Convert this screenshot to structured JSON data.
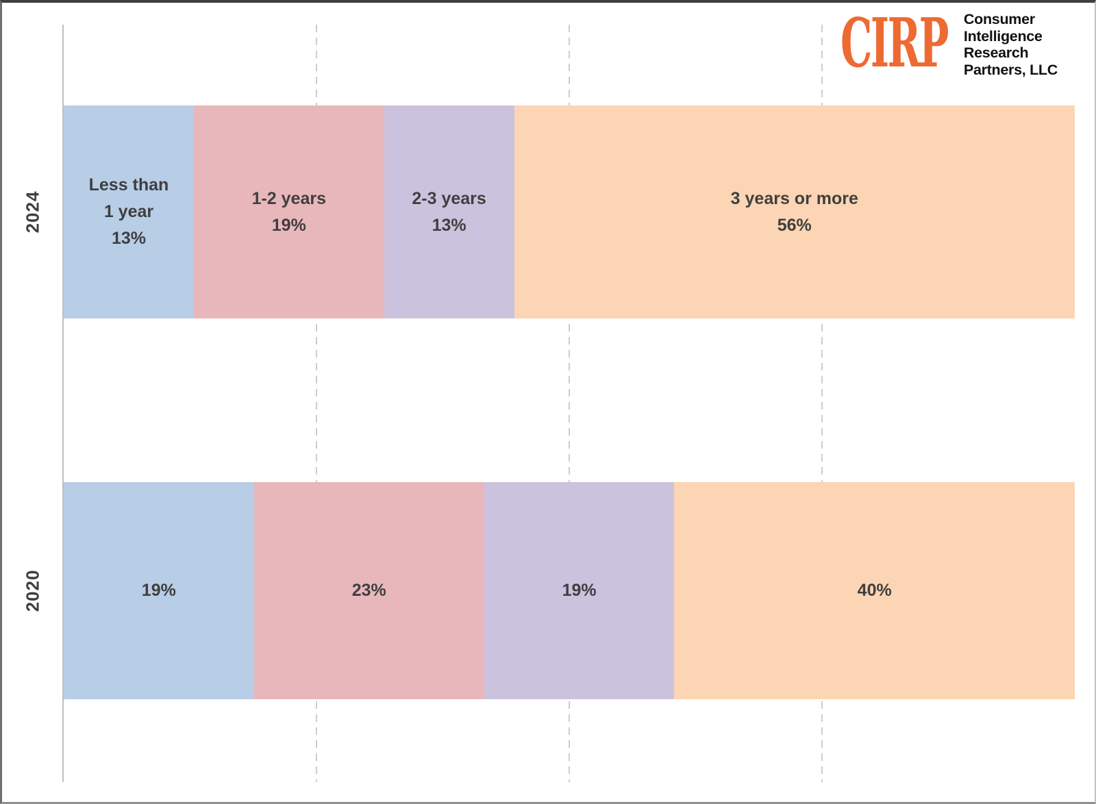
{
  "logo": {
    "acronym": "CIRP",
    "company_lines": [
      "Consumer",
      "Intelligence",
      "Research",
      "Partners, LLC"
    ],
    "accent_color": "#ee6a33"
  },
  "chart_data": {
    "type": "bar",
    "variant": "horizontal-stacked",
    "title": "",
    "categories": [
      "2024",
      "2020"
    ],
    "colors": [
      "#b8cde6",
      "#e8b7bb",
      "#cbc2de",
      "#fbd5b4"
    ],
    "label_color": "#3f3f3f",
    "series": [
      {
        "name": "Less than 1 year",
        "values": [
          13,
          19
        ]
      },
      {
        "name": "1-2 years",
        "values": [
          19,
          23
        ]
      },
      {
        "name": "2-3 years",
        "values": [
          13,
          19
        ]
      },
      {
        "name": "3 years or more",
        "values": [
          56,
          40
        ]
      }
    ],
    "data_labels": {
      "2024": [
        "Less than\n1 year\n13%",
        "1-2 years\n19%",
        "2-3 years\n13%",
        "3 years or more\n56%"
      ],
      "2020": [
        "19%",
        "23%",
        "19%",
        "40%"
      ]
    },
    "x_axis": {
      "min": 0,
      "max": 100,
      "unit": "%",
      "gridlines_pct": [
        25,
        50,
        75
      ],
      "grid_style": "dashed"
    },
    "legend": "none",
    "grid": true
  }
}
